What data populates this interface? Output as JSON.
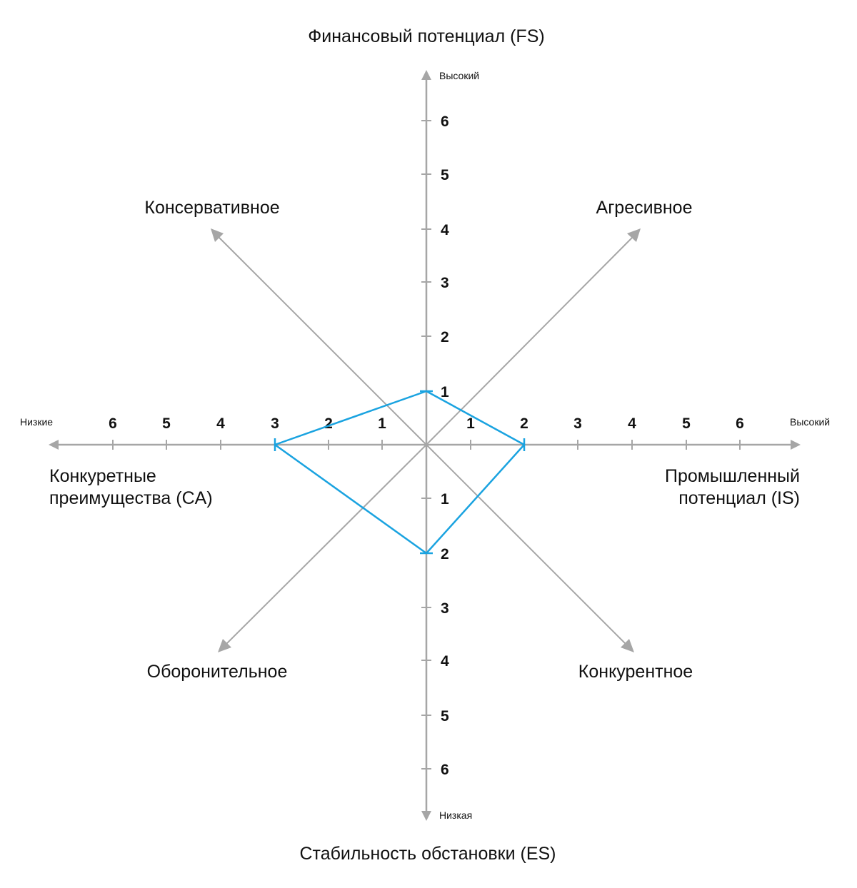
{
  "axes": {
    "fs": {
      "title": "Финансовый потенциал (FS)",
      "end_label": "Высокий",
      "ticks": [
        "1",
        "2",
        "3",
        "4",
        "5",
        "6"
      ]
    },
    "es": {
      "title": "Стабильность обстановки (ES)",
      "end_label": "Низкая",
      "ticks": [
        "1",
        "2",
        "3",
        "4",
        "5",
        "6"
      ]
    },
    "ca": {
      "title_lines": [
        "Конкуретные",
        "преимущества (CA)"
      ],
      "end_label": "Низкие",
      "ticks": [
        "1",
        "2",
        "3",
        "4",
        "5",
        "6"
      ]
    },
    "is": {
      "title_lines": [
        "Промышленный",
        "потенциал (IS)"
      ],
      "end_label": "Высокий",
      "ticks": [
        "1",
        "2",
        "3",
        "4",
        "5",
        "6"
      ]
    }
  },
  "quadrants": {
    "top_left": "Консервативное",
    "top_right": "Агресивное",
    "bottom_left": "Оборонительное",
    "bottom_right": "Конкурентное"
  },
  "profile": {
    "fs": 1,
    "is": 2,
    "es": 2,
    "ca": 3
  },
  "colors": {
    "axis": "#a6a6a6",
    "profile": "#1aa3e0",
    "text": "#111111"
  }
}
